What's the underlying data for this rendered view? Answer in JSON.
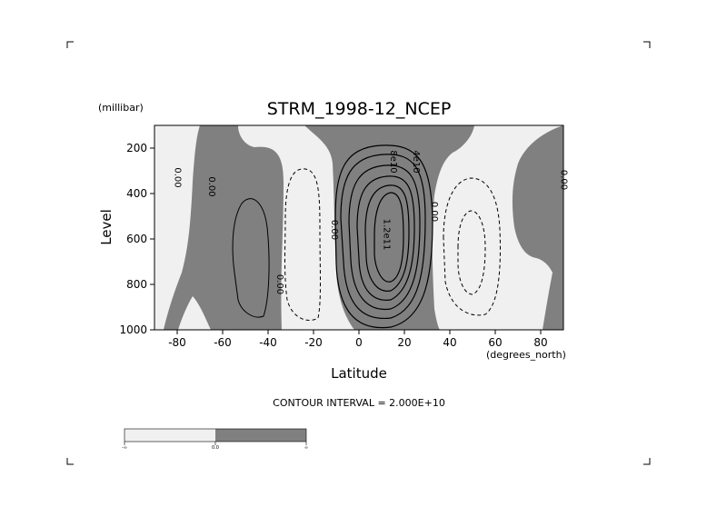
{
  "chart_data": {
    "type": "contour",
    "title": "STRM_1998-12_NCEP",
    "xlabel": "Latitude",
    "x_units": "(degrees_north)",
    "ylabel": "Level",
    "y_units": "(millibar)",
    "xlim": [
      -90,
      90
    ],
    "ylim": [
      1000,
      100
    ],
    "y_reversed": true,
    "x_ticks": [
      {
        "value": -80,
        "label": "-80"
      },
      {
        "value": -60,
        "label": "-60"
      },
      {
        "value": -40,
        "label": "-40"
      },
      {
        "value": -20,
        "label": "-20"
      },
      {
        "value": 0,
        "label": "0"
      },
      {
        "value": 20,
        "label": "20"
      },
      {
        "value": 40,
        "label": "40"
      },
      {
        "value": 60,
        "label": "60"
      },
      {
        "value": 80,
        "label": "80"
      }
    ],
    "y_ticks": [
      {
        "value": 200,
        "label": "200"
      },
      {
        "value": 400,
        "label": "400"
      },
      {
        "value": 600,
        "label": "600"
      },
      {
        "value": 800,
        "label": "800"
      },
      {
        "value": 1000,
        "label": "1000"
      }
    ],
    "contour_interval_text": "CONTOUR INTERVAL = 2.000E+10",
    "contour_interval": 20000000000,
    "shading": [
      {
        "range": "negative",
        "color": "#f0f0f0"
      },
      {
        "range": "positive",
        "color": "#808080"
      }
    ],
    "colorbar_labels": [
      "-∞",
      "0.0",
      "∞"
    ],
    "contour_labels": [
      {
        "text": "0.00",
        "lat": -81,
        "level": 330
      },
      {
        "text": "0.00",
        "lat": -66,
        "level": 370
      },
      {
        "text": "0.00",
        "lat": -36,
        "level": 800
      },
      {
        "text": "0.00",
        "lat": -12,
        "level": 560
      },
      {
        "text": "8e10",
        "lat": 14,
        "level": 260
      },
      {
        "text": "4e10",
        "lat": 24,
        "level": 260
      },
      {
        "text": "1.2e11",
        "lat": 11,
        "level": 580
      },
      {
        "text": "0.00",
        "lat": 32,
        "level": 480
      },
      {
        "text": "0.00",
        "lat": 89,
        "level": 340
      }
    ],
    "features": [
      {
        "kind": "positive-cell",
        "lat_range": [
          -64,
          -30
        ],
        "level_range": [
          250,
          1000
        ]
      },
      {
        "kind": "negative-cell",
        "lat_range": [
          -30,
          -8
        ],
        "level_range": [
          150,
          1000
        ]
      },
      {
        "kind": "positive-cell",
        "lat_range": [
          -10,
          34
        ],
        "level_range": [
          100,
          1000
        ],
        "peak": "1.2e11 near 15N, 550 mb"
      },
      {
        "kind": "negative-cell",
        "lat_range": [
          34,
          68
        ],
        "level_range": [
          100,
          950
        ]
      },
      {
        "kind": "positive-cell",
        "lat_range": [
          65,
          90
        ],
        "level_range": [
          150,
          1000
        ]
      }
    ]
  }
}
